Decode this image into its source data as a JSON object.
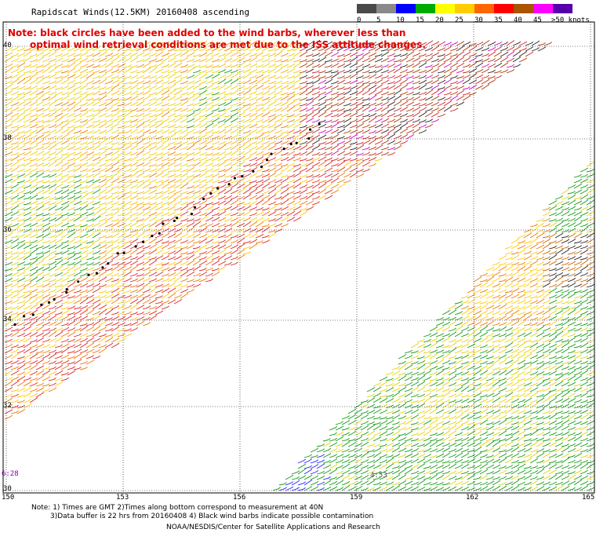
{
  "title": "Rapidscat Winds(12.5KM) 20160408 ascending",
  "note": {
    "line1": "Note: black circles have been added to the wind barbs, wherever less than",
    "line2": "optimal wind retrieval conditions are met due to the ISS attitude changes."
  },
  "legend": {
    "labels": [
      "0",
      "5",
      "10",
      "15",
      "20",
      "25",
      "30",
      "35",
      "40",
      "45",
      ">50 knots"
    ],
    "colors": [
      "#4a4a4a",
      "#8a8a8a",
      "#0000ff",
      "#00aa00",
      "#ffff00",
      "#ffcc00",
      "#ff6600",
      "#ff0000",
      "#aa5500",
      "#ff00ff",
      "#5500aa"
    ]
  },
  "axes": {
    "lat_labels": [
      "40",
      "38",
      "36",
      "34",
      "32",
      "30"
    ],
    "lon_labels": [
      "150",
      "153",
      "156",
      "159",
      "162",
      "165"
    ]
  },
  "pass_times": [
    "6:28",
    "4:53"
  ],
  "footnotes": {
    "line1": "Note: 1) Times are GMT 2)Times along bottom correspond to measurement at 40N",
    "line2": "3)Data buffer is 22 hrs from 20160408 4) Black wind barbs indicate possible contamination",
    "line3": "NOAA/NESDIS/Center for Satellite Applications and Research"
  }
}
